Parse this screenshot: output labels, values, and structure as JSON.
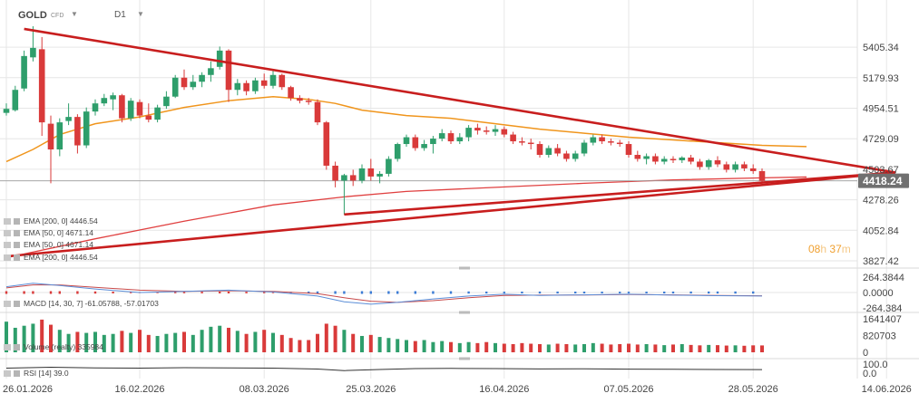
{
  "header": {
    "symbol": "GOLD",
    "sub": "CFD",
    "timeframe": "D1"
  },
  "countdown": {
    "hours": "08",
    "h": "h",
    "minutes": "37",
    "m": "m"
  },
  "legend": {
    "ema200_a": "EMA [200, 0] 4446.54",
    "ema50_a": "EMA [50, 0] 4671.14",
    "ema50_b": "EMA [50, 0] 4671.14",
    "ema200_b": "EMA [200, 0] 4446.54",
    "macd": "MACD [14, 30, 7] -61.05788, -57.01703",
    "volume": "Volume (realty) 335984",
    "rsi": "RSI [14] 39.0"
  },
  "colors": {
    "up": "#2e9e6b",
    "down": "#d93a3a",
    "ema50": "#f0951c",
    "ema200": "#e04040",
    "trendline": "#c81e1e",
    "price_tag": "#707070",
    "grid": "#e6e6e6",
    "axis_text": "#444444"
  },
  "chart_data": [
    {
      "type": "candlestick",
      "title": "GOLD",
      "timeframe": "D1",
      "y_ticks": [
        "5405.34",
        "5179.93",
        "4954.51",
        "4729.09",
        "4503.67",
        "4278.26",
        "4052.84",
        "3827.42"
      ],
      "ylim": [
        3827.42,
        5630
      ],
      "x_tick_labels": [
        "26.01.2026",
        "16.02.2026",
        "08.03.2026",
        "25.03.2026",
        "16.04.2026",
        "07.05.2026",
        "28.05.2026",
        "14.06.2026"
      ],
      "x_ticks": [
        0,
        15,
        29,
        41,
        56,
        70,
        84,
        99
      ],
      "last_price": "4418.24",
      "last_price_value": 4418.24,
      "candles": [
        {
          "i": 0,
          "o": 4920,
          "h": 4990,
          "l": 4900,
          "c": 4950
        },
        {
          "i": 1,
          "o": 4940,
          "h": 5120,
          "l": 4930,
          "c": 5090
        },
        {
          "i": 2,
          "o": 5100,
          "h": 5380,
          "l": 5080,
          "c": 5340
        },
        {
          "i": 3,
          "o": 5330,
          "h": 5560,
          "l": 5300,
          "c": 5400
        },
        {
          "i": 4,
          "o": 5390,
          "h": 5480,
          "l": 4750,
          "c": 4850
        },
        {
          "i": 5,
          "o": 4840,
          "h": 4900,
          "l": 4400,
          "c": 4650
        },
        {
          "i": 6,
          "o": 4650,
          "h": 4880,
          "l": 4600,
          "c": 4850
        },
        {
          "i": 7,
          "o": 4860,
          "h": 4990,
          "l": 4830,
          "c": 4890
        },
        {
          "i": 8,
          "o": 4890,
          "h": 4910,
          "l": 4620,
          "c": 4680
        },
        {
          "i": 9,
          "o": 4680,
          "h": 4960,
          "l": 4660,
          "c": 4930
        },
        {
          "i": 10,
          "o": 4930,
          "h": 5020,
          "l": 4900,
          "c": 4990
        },
        {
          "i": 11,
          "o": 4990,
          "h": 5060,
          "l": 4970,
          "c": 5030
        },
        {
          "i": 12,
          "o": 5020,
          "h": 5070,
          "l": 4940,
          "c": 5050
        },
        {
          "i": 13,
          "o": 5050,
          "h": 5060,
          "l": 4850,
          "c": 4880
        },
        {
          "i": 14,
          "o": 4880,
          "h": 5030,
          "l": 4860,
          "c": 5010
        },
        {
          "i": 15,
          "o": 5000,
          "h": 5020,
          "l": 4880,
          "c": 4900
        },
        {
          "i": 16,
          "o": 4900,
          "h": 4990,
          "l": 4850,
          "c": 4870
        },
        {
          "i": 17,
          "o": 4870,
          "h": 4980,
          "l": 4850,
          "c": 4960
        },
        {
          "i": 18,
          "o": 4970,
          "h": 5080,
          "l": 4950,
          "c": 5040
        },
        {
          "i": 19,
          "o": 5040,
          "h": 5200,
          "l": 5030,
          "c": 5180
        },
        {
          "i": 20,
          "o": 5180,
          "h": 5240,
          "l": 5090,
          "c": 5110
        },
        {
          "i": 21,
          "o": 5110,
          "h": 5200,
          "l": 5090,
          "c": 5150
        },
        {
          "i": 22,
          "o": 5150,
          "h": 5220,
          "l": 5110,
          "c": 5200
        },
        {
          "i": 23,
          "o": 5200,
          "h": 5300,
          "l": 5150,
          "c": 5250
        },
        {
          "i": 24,
          "o": 5260,
          "h": 5410,
          "l": 5240,
          "c": 5380
        },
        {
          "i": 25,
          "o": 5380,
          "h": 5390,
          "l": 5000,
          "c": 5090
        },
        {
          "i": 26,
          "o": 5090,
          "h": 5170,
          "l": 5050,
          "c": 5140
        },
        {
          "i": 27,
          "o": 5140,
          "h": 5160,
          "l": 5050,
          "c": 5080
        },
        {
          "i": 28,
          "o": 5080,
          "h": 5180,
          "l": 5060,
          "c": 5160
        },
        {
          "i": 29,
          "o": 5160,
          "h": 5210,
          "l": 5100,
          "c": 5120
        },
        {
          "i": 30,
          "o": 5120,
          "h": 5230,
          "l": 5100,
          "c": 5200
        },
        {
          "i": 31,
          "o": 5200,
          "h": 5210,
          "l": 5090,
          "c": 5110
        },
        {
          "i": 32,
          "o": 5110,
          "h": 5120,
          "l": 5010,
          "c": 5030
        },
        {
          "i": 33,
          "o": 5030,
          "h": 5050,
          "l": 4990,
          "c": 5010
        },
        {
          "i": 34,
          "o": 5010,
          "h": 5030,
          "l": 4980,
          "c": 5000
        },
        {
          "i": 35,
          "o": 5000,
          "h": 5020,
          "l": 4830,
          "c": 4850
        },
        {
          "i": 36,
          "o": 4850,
          "h": 4860,
          "l": 4500,
          "c": 4530
        },
        {
          "i": 37,
          "o": 4530,
          "h": 4560,
          "l": 4370,
          "c": 4420
        },
        {
          "i": 38,
          "o": 4420,
          "h": 4470,
          "l": 4170,
          "c": 4460
        },
        {
          "i": 39,
          "o": 4460,
          "h": 4500,
          "l": 4380,
          "c": 4420
        },
        {
          "i": 40,
          "o": 4420,
          "h": 4540,
          "l": 4400,
          "c": 4510
        },
        {
          "i": 41,
          "o": 4510,
          "h": 4580,
          "l": 4420,
          "c": 4450
        },
        {
          "i": 42,
          "o": 4450,
          "h": 4490,
          "l": 4400,
          "c": 4470
        },
        {
          "i": 43,
          "o": 4470,
          "h": 4600,
          "l": 4450,
          "c": 4580
        },
        {
          "i": 44,
          "o": 4580,
          "h": 4700,
          "l": 4560,
          "c": 4690
        },
        {
          "i": 45,
          "o": 4690,
          "h": 4760,
          "l": 4670,
          "c": 4740
        },
        {
          "i": 46,
          "o": 4740,
          "h": 4760,
          "l": 4640,
          "c": 4660
        },
        {
          "i": 47,
          "o": 4660,
          "h": 4720,
          "l": 4640,
          "c": 4690
        },
        {
          "i": 48,
          "o": 4690,
          "h": 4750,
          "l": 4620,
          "c": 4730
        },
        {
          "i": 49,
          "o": 4730,
          "h": 4800,
          "l": 4710,
          "c": 4770
        },
        {
          "i": 50,
          "o": 4770,
          "h": 4790,
          "l": 4690,
          "c": 4710
        },
        {
          "i": 51,
          "o": 4710,
          "h": 4770,
          "l": 4690,
          "c": 4740
        },
        {
          "i": 52,
          "o": 4740,
          "h": 4830,
          "l": 4710,
          "c": 4810
        },
        {
          "i": 53,
          "o": 4810,
          "h": 4840,
          "l": 4760,
          "c": 4790
        },
        {
          "i": 54,
          "o": 4790,
          "h": 4820,
          "l": 4760,
          "c": 4780
        },
        {
          "i": 55,
          "o": 4780,
          "h": 4830,
          "l": 4750,
          "c": 4800
        },
        {
          "i": 56,
          "o": 4800,
          "h": 4820,
          "l": 4740,
          "c": 4760
        },
        {
          "i": 57,
          "o": 4760,
          "h": 4780,
          "l": 4690,
          "c": 4710
        },
        {
          "i": 58,
          "o": 4710,
          "h": 4740,
          "l": 4680,
          "c": 4700
        },
        {
          "i": 59,
          "o": 4700,
          "h": 4730,
          "l": 4650,
          "c": 4690
        },
        {
          "i": 60,
          "o": 4690,
          "h": 4710,
          "l": 4590,
          "c": 4610
        },
        {
          "i": 61,
          "o": 4610,
          "h": 4680,
          "l": 4590,
          "c": 4660
        },
        {
          "i": 62,
          "o": 4660,
          "h": 4690,
          "l": 4600,
          "c": 4620
        },
        {
          "i": 63,
          "o": 4620,
          "h": 4640,
          "l": 4560,
          "c": 4580
        },
        {
          "i": 64,
          "o": 4580,
          "h": 4640,
          "l": 4560,
          "c": 4620
        },
        {
          "i": 65,
          "o": 4620,
          "h": 4720,
          "l": 4600,
          "c": 4700
        },
        {
          "i": 66,
          "o": 4700,
          "h": 4760,
          "l": 4680,
          "c": 4740
        },
        {
          "i": 67,
          "o": 4740,
          "h": 4760,
          "l": 4690,
          "c": 4710
        },
        {
          "i": 68,
          "o": 4710,
          "h": 4730,
          "l": 4680,
          "c": 4700
        },
        {
          "i": 69,
          "o": 4700,
          "h": 4720,
          "l": 4670,
          "c": 4690
        },
        {
          "i": 70,
          "o": 4690,
          "h": 4710,
          "l": 4590,
          "c": 4610
        },
        {
          "i": 71,
          "o": 4610,
          "h": 4640,
          "l": 4560,
          "c": 4580
        },
        {
          "i": 72,
          "o": 4580,
          "h": 4620,
          "l": 4540,
          "c": 4600
        },
        {
          "i": 73,
          "o": 4600,
          "h": 4620,
          "l": 4540,
          "c": 4560
        },
        {
          "i": 74,
          "o": 4560,
          "h": 4600,
          "l": 4540,
          "c": 4580
        },
        {
          "i": 75,
          "o": 4580,
          "h": 4600,
          "l": 4550,
          "c": 4570
        },
        {
          "i": 76,
          "o": 4570,
          "h": 4600,
          "l": 4550,
          "c": 4590
        },
        {
          "i": 77,
          "o": 4590,
          "h": 4610,
          "l": 4540,
          "c": 4560
        },
        {
          "i": 78,
          "o": 4560,
          "h": 4580,
          "l": 4500,
          "c": 4520
        },
        {
          "i": 79,
          "o": 4520,
          "h": 4580,
          "l": 4500,
          "c": 4570
        },
        {
          "i": 80,
          "o": 4570,
          "h": 4600,
          "l": 4520,
          "c": 4540
        },
        {
          "i": 81,
          "o": 4540,
          "h": 4560,
          "l": 4480,
          "c": 4500
        },
        {
          "i": 82,
          "o": 4500,
          "h": 4560,
          "l": 4480,
          "c": 4540
        },
        {
          "i": 83,
          "o": 4540,
          "h": 4560,
          "l": 4490,
          "c": 4510
        },
        {
          "i": 84,
          "o": 4510,
          "h": 4540,
          "l": 4470,
          "c": 4490
        },
        {
          "i": 85,
          "o": 4490,
          "h": 4510,
          "l": 4400,
          "c": 4418
        }
      ],
      "ema50": [
        [
          0,
          4560
        ],
        [
          3,
          4650
        ],
        [
          6,
          4760
        ],
        [
          10,
          4840
        ],
        [
          15,
          4890
        ],
        [
          20,
          4960
        ],
        [
          25,
          5010
        ],
        [
          30,
          5040
        ],
        [
          34,
          5020
        ],
        [
          37,
          4990
        ],
        [
          40,
          4940
        ],
        [
          45,
          4900
        ],
        [
          50,
          4880
        ],
        [
          55,
          4840
        ],
        [
          60,
          4800
        ],
        [
          65,
          4770
        ],
        [
          70,
          4740
        ],
        [
          75,
          4720
        ],
        [
          80,
          4700
        ],
        [
          85,
          4680
        ],
        [
          90,
          4671
        ]
      ],
      "ema200": [
        [
          0,
          3850
        ],
        [
          10,
          3990
        ],
        [
          20,
          4120
        ],
        [
          30,
          4240
        ],
        [
          38,
          4300
        ],
        [
          45,
          4340
        ],
        [
          55,
          4370
        ],
        [
          65,
          4400
        ],
        [
          75,
          4425
        ],
        [
          85,
          4440
        ],
        [
          90,
          4446.54
        ]
      ],
      "trendlines": [
        {
          "name": "upper",
          "points": [
            [
              2,
              5540
            ],
            [
              100,
              4480
            ]
          ]
        },
        {
          "name": "lower",
          "points": [
            [
              0,
              3860
            ],
            [
              100,
              4480
            ]
          ]
        },
        {
          "name": "support",
          "points": [
            [
              38,
              4170
            ],
            [
              100,
              4480
            ]
          ]
        }
      ]
    },
    {
      "type": "line",
      "title": "MACD [14, 30, 7]",
      "y_ticks": [
        "264.3844",
        "0.0000",
        "-264.384"
      ],
      "ylim": [
        -264.384,
        264.3844
      ],
      "last_values": [
        -61.05788,
        -57.01703
      ],
      "macd_line": [
        [
          0,
          100
        ],
        [
          3,
          160
        ],
        [
          6,
          120
        ],
        [
          10,
          60
        ],
        [
          15,
          0
        ],
        [
          20,
          20
        ],
        [
          25,
          40
        ],
        [
          30,
          10
        ],
        [
          35,
          -60
        ],
        [
          38,
          -160
        ],
        [
          41,
          -200
        ],
        [
          44,
          -170
        ],
        [
          48,
          -110
        ],
        [
          52,
          -60
        ],
        [
          56,
          -30
        ],
        [
          60,
          -50
        ],
        [
          65,
          -40
        ],
        [
          70,
          -30
        ],
        [
          75,
          -45
        ],
        [
          80,
          -55
        ],
        [
          85,
          -61
        ]
      ],
      "signal_line": [
        [
          0,
          80
        ],
        [
          3,
          130
        ],
        [
          6,
          130
        ],
        [
          10,
          90
        ],
        [
          15,
          40
        ],
        [
          20,
          20
        ],
        [
          25,
          30
        ],
        [
          30,
          20
        ],
        [
          35,
          -20
        ],
        [
          38,
          -90
        ],
        [
          41,
          -150
        ],
        [
          44,
          -170
        ],
        [
          48,
          -140
        ],
        [
          52,
          -90
        ],
        [
          56,
          -50
        ],
        [
          60,
          -45
        ],
        [
          65,
          -42
        ],
        [
          70,
          -35
        ],
        [
          75,
          -40
        ],
        [
          80,
          -50
        ],
        [
          85,
          -57
        ]
      ]
    },
    {
      "type": "bar",
      "title": "Volume (realty)",
      "y_ticks": [
        "1641407",
        "820703",
        "0"
      ],
      "ylim": [
        0,
        1641407
      ],
      "last_value": 335984,
      "values": [
        1500000,
        1200000,
        1300000,
        1400000,
        1600000,
        1350000,
        1100000,
        900000,
        1000000,
        950000,
        1000000,
        850000,
        900000,
        1050000,
        950000,
        1100000,
        850000,
        800000,
        900000,
        950000,
        1000000,
        850000,
        1100000,
        1250000,
        1300000,
        1200000,
        1050000,
        900000,
        1000000,
        1100000,
        950000,
        850000,
        700000,
        600000,
        600000,
        900000,
        1400000,
        1300000,
        1100000,
        900000,
        800000,
        850000,
        750000,
        700000,
        650000,
        600000,
        550000,
        600000,
        500000,
        550000,
        500000,
        450000,
        500000,
        450000,
        500000,
        450000,
        420000,
        400000,
        450000,
        420000,
        400000,
        380000,
        420000,
        400000,
        380000,
        400000,
        450000,
        420000,
        380000,
        400000,
        420000,
        380000,
        400000,
        380000,
        350000,
        380000,
        400000,
        360000,
        340000,
        360000,
        350000,
        330000,
        340000,
        320000,
        340000,
        336000
      ]
    },
    {
      "type": "line",
      "title": "RSI [14]",
      "y_ticks": [
        "100.0",
        "0.0"
      ],
      "ylim": [
        0,
        100
      ],
      "last_value": 39.0,
      "values": [
        [
          0,
          55
        ],
        [
          5,
          65
        ],
        [
          10,
          58
        ],
        [
          15,
          55
        ],
        [
          20,
          60
        ],
        [
          25,
          58
        ],
        [
          30,
          55
        ],
        [
          35,
          45
        ],
        [
          38,
          28
        ],
        [
          42,
          40
        ],
        [
          46,
          50
        ],
        [
          50,
          52
        ],
        [
          55,
          50
        ],
        [
          60,
          46
        ],
        [
          65,
          48
        ],
        [
          70,
          44
        ],
        [
          75,
          42
        ],
        [
          80,
          40
        ],
        [
          85,
          39
        ]
      ]
    }
  ]
}
